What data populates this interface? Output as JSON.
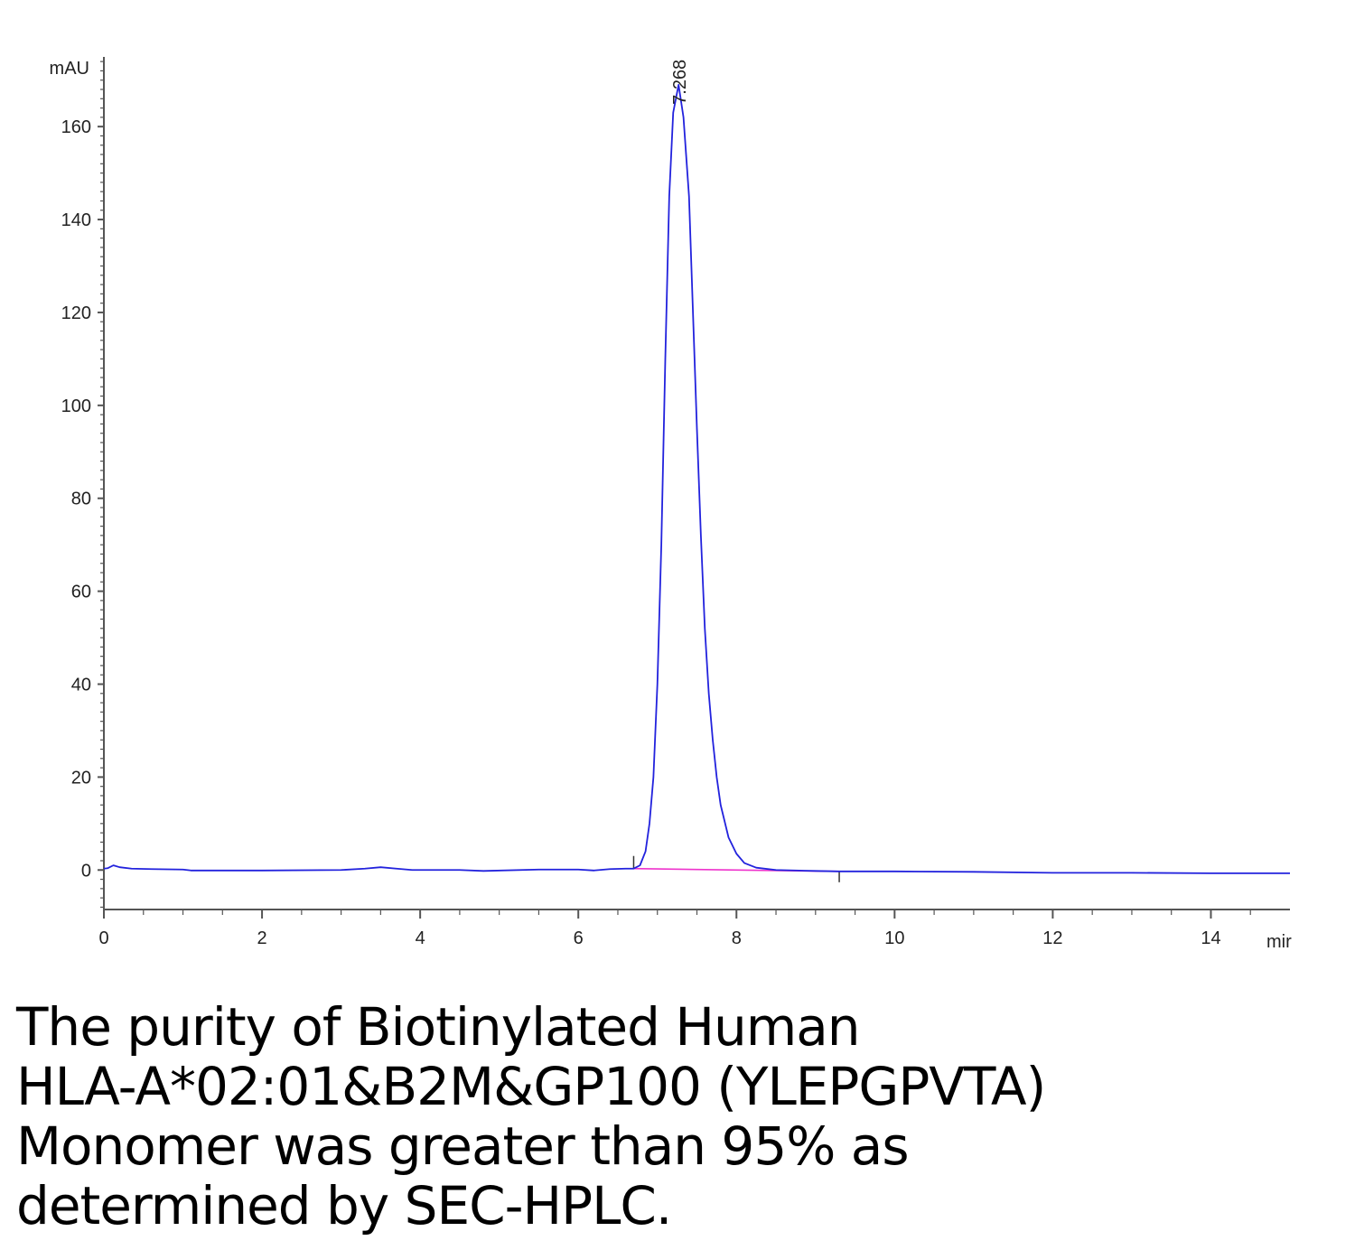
{
  "chart_data": {
    "type": "line",
    "y_unit_label": "mAU",
    "x_unit_label": "mir",
    "xlim": [
      0,
      15
    ],
    "ylim": [
      -8.5,
      175
    ],
    "x_ticks": [
      0,
      2,
      4,
      6,
      8,
      10,
      12,
      14
    ],
    "y_ticks": [
      0,
      20,
      40,
      60,
      80,
      100,
      120,
      140,
      160
    ],
    "peak_label": "7.268",
    "peak": {
      "x": 7.268,
      "y": 169
    },
    "series": [
      {
        "color": "#2222dd",
        "points": [
          [
            0,
            0.3
          ],
          [
            0.05,
            0.4
          ],
          [
            0.12,
            1.0
          ],
          [
            0.2,
            0.6
          ],
          [
            0.35,
            0.3
          ],
          [
            0.6,
            0.2
          ],
          [
            1.0,
            0.1
          ],
          [
            1.1,
            -0.1
          ],
          [
            2.0,
            -0.1
          ],
          [
            3.0,
            0.0
          ],
          [
            3.3,
            0.3
          ],
          [
            3.5,
            0.6
          ],
          [
            3.7,
            0.3
          ],
          [
            3.9,
            0.0
          ],
          [
            4.5,
            0.0
          ],
          [
            4.8,
            -0.2
          ],
          [
            5.5,
            0.1
          ],
          [
            6.0,
            0.1
          ],
          [
            6.2,
            -0.1
          ],
          [
            6.4,
            0.2
          ],
          [
            6.6,
            0.3
          ],
          [
            6.7,
            0.3
          ],
          [
            6.78,
            1.0
          ],
          [
            6.85,
            4.0
          ],
          [
            6.9,
            10.0
          ],
          [
            6.95,
            20.0
          ],
          [
            7.0,
            40.0
          ],
          [
            7.05,
            70.0
          ],
          [
            7.1,
            110.0
          ],
          [
            7.15,
            145.0
          ],
          [
            7.2,
            163.0
          ],
          [
            7.268,
            169.0
          ],
          [
            7.33,
            162.0
          ],
          [
            7.4,
            145.0
          ],
          [
            7.45,
            120.0
          ],
          [
            7.5,
            95.0
          ],
          [
            7.55,
            72.0
          ],
          [
            7.6,
            52.0
          ],
          [
            7.65,
            38.0
          ],
          [
            7.7,
            28.0
          ],
          [
            7.75,
            20.0
          ],
          [
            7.8,
            14.0
          ],
          [
            7.9,
            7.0
          ],
          [
            8.0,
            3.5
          ],
          [
            8.1,
            1.5
          ],
          [
            8.25,
            0.5
          ],
          [
            8.5,
            0.0
          ],
          [
            9.0,
            -0.2
          ],
          [
            9.3,
            -0.3
          ],
          [
            10.0,
            -0.3
          ],
          [
            11.0,
            -0.4
          ],
          [
            12.0,
            -0.6
          ],
          [
            13.0,
            -0.6
          ],
          [
            14.0,
            -0.7
          ],
          [
            15.0,
            -0.7
          ]
        ]
      }
    ],
    "baseline": {
      "color": "#ee33cc",
      "x": [
        6.7,
        9.3
      ],
      "y": [
        0.3,
        -0.3
      ]
    }
  },
  "caption": {
    "lines": [
      "The purity of Biotinylated Human",
      "HLA-A*02:01&B2M&GP100 (YLEPGPVTA)",
      "Monomer was greater than 95% as",
      "determined by SEC-HPLC."
    ]
  }
}
